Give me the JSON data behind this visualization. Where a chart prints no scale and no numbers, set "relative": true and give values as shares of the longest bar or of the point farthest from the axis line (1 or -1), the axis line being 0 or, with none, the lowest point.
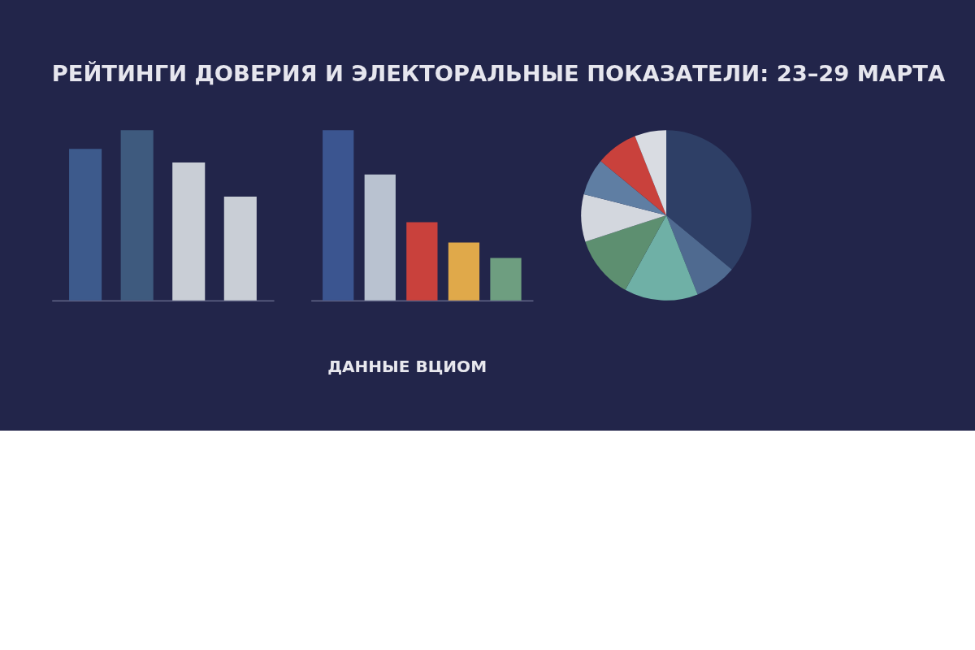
{
  "chart_data": [
    {
      "type": "bar",
      "title": "РЕЙТИНГИ ДОВЕРИЯ И ЭЛЕКТОРАЛЬНЫЕ ПОКАЗАТЕЛИ: 23–29 МАРТА",
      "relative": true,
      "tick_labels": false,
      "categories": [
        null,
        null,
        null,
        null
      ],
      "values": [
        0.89,
        1,
        0.81,
        0.61
      ],
      "colors": [
        "#3d5a8c",
        "#3e5a7e",
        "#c9ced6",
        "#c9ced6"
      ]
    },
    {
      "type": "bar",
      "relative": true,
      "tick_labels": false,
      "categories": [
        null,
        null,
        null,
        null,
        null
      ],
      "values": [
        1,
        0.74,
        0.46,
        0.34,
        0.25
      ],
      "colors": [
        "#3b5590",
        "#b9c2d0",
        "#c9413c",
        "#e0a94a",
        "#6e9e80"
      ],
      "annotations": [
        "ДАННЫЕ ВЦИОМ"
      ]
    },
    {
      "type": "pie",
      "categories": [
        null,
        null,
        null,
        null,
        null,
        null,
        null,
        null
      ],
      "values": [
        36,
        8,
        14,
        12,
        9,
        7,
        8,
        6
      ],
      "colors": [
        "#2e3f66",
        "#4f6a90",
        "#6fb0a6",
        "#5d8f70",
        "#d3d7de",
        "#5f7ea3",
        "#c9413c",
        "#d9dce2"
      ]
    }
  ]
}
